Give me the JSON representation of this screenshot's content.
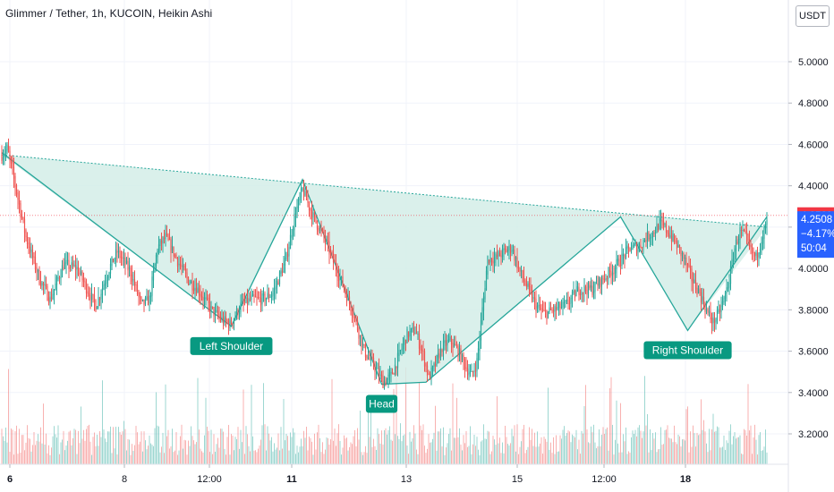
{
  "header": {
    "title": "Glimmer / Tether, 1h, KUCOIN, Heikin Ashi",
    "currency_button": "USDT"
  },
  "colors": {
    "up": "#26a69a",
    "down": "#ef5350",
    "pattern_fill": "#d3ede8",
    "pattern_line": "#26a69a",
    "badge": "#089981",
    "price_up_tag": "#2962ff",
    "price_down_tag": "#f23645",
    "grid": "#f0f3fa"
  },
  "chart_data": {
    "type": "candlestick",
    "title": "Glimmer / Tether, 1h, KUCOIN, Heikin Ashi",
    "y_axis": {
      "ticks": [
        "5.0000",
        "4.8000",
        "4.6000",
        "4.4000",
        "4.2000",
        "4.0000",
        "3.8000",
        "3.6000",
        "3.4000",
        "3.2000"
      ],
      "ylim": [
        3.04,
        5.21
      ]
    },
    "x_axis": {
      "ticks": [
        {
          "label": "6",
          "bold": true
        },
        {
          "label": "8",
          "bold": false
        },
        {
          "label": "12:00",
          "bold": false
        },
        {
          "label": "11",
          "bold": true
        },
        {
          "label": "13",
          "bold": false
        },
        {
          "label": "15",
          "bold": false
        },
        {
          "label": "12:00",
          "bold": false
        },
        {
          "label": "18",
          "bold": true
        }
      ]
    },
    "price_path": [
      [
        0,
        4.55
      ],
      [
        4,
        4.58
      ],
      [
        10,
        4.4
      ],
      [
        18,
        4.15
      ],
      [
        28,
        3.95
      ],
      [
        36,
        3.85
      ],
      [
        46,
        4.02
      ],
      [
        56,
        4.0
      ],
      [
        62,
        3.92
      ],
      [
        70,
        3.82
      ],
      [
        80,
        4.0
      ],
      [
        86,
        4.08
      ],
      [
        96,
        3.98
      ],
      [
        104,
        3.82
      ],
      [
        110,
        3.85
      ],
      [
        116,
        4.1
      ],
      [
        122,
        4.15
      ],
      [
        130,
        4.05
      ],
      [
        138,
        3.95
      ],
      [
        146,
        3.9
      ],
      [
        156,
        3.8
      ],
      [
        164,
        3.75
      ],
      [
        170,
        3.73
      ],
      [
        178,
        3.82
      ],
      [
        186,
        3.85
      ],
      [
        194,
        3.85
      ],
      [
        202,
        3.88
      ],
      [
        212,
        4.05
      ],
      [
        218,
        4.25
      ],
      [
        224,
        4.38
      ],
      [
        232,
        4.25
      ],
      [
        240,
        4.15
      ],
      [
        246,
        4.05
      ],
      [
        254,
        3.92
      ],
      [
        262,
        3.78
      ],
      [
        270,
        3.6
      ],
      [
        278,
        3.52
      ],
      [
        284,
        3.45
      ],
      [
        290,
        3.48
      ],
      [
        296,
        3.58
      ],
      [
        302,
        3.68
      ],
      [
        308,
        3.7
      ],
      [
        314,
        3.58
      ],
      [
        318,
        3.47
      ],
      [
        322,
        3.52
      ],
      [
        328,
        3.62
      ],
      [
        334,
        3.65
      ],
      [
        340,
        3.6
      ],
      [
        346,
        3.52
      ],
      [
        350,
        3.48
      ],
      [
        354,
        3.55
      ],
      [
        358,
        3.8
      ],
      [
        362,
        4.05
      ],
      [
        368,
        4.05
      ],
      [
        374,
        4.08
      ],
      [
        380,
        4.1
      ],
      [
        386,
        3.98
      ],
      [
        392,
        3.9
      ],
      [
        398,
        3.82
      ],
      [
        404,
        3.78
      ],
      [
        412,
        3.8
      ],
      [
        420,
        3.82
      ],
      [
        430,
        3.9
      ],
      [
        440,
        3.9
      ],
      [
        448,
        3.95
      ],
      [
        456,
        4.0
      ],
      [
        462,
        4.05
      ],
      [
        468,
        4.1
      ],
      [
        474,
        4.1
      ],
      [
        480,
        4.15
      ],
      [
        486,
        4.18
      ],
      [
        490,
        4.22
      ],
      [
        496,
        4.18
      ],
      [
        502,
        4.12
      ],
      [
        508,
        4.05
      ],
      [
        514,
        3.95
      ],
      [
        520,
        3.88
      ],
      [
        526,
        3.78
      ],
      [
        530,
        3.74
      ],
      [
        534,
        3.78
      ],
      [
        538,
        3.85
      ],
      [
        542,
        3.95
      ],
      [
        546,
        4.1
      ],
      [
        550,
        4.18
      ],
      [
        554,
        4.15
      ],
      [
        558,
        4.08
      ],
      [
        562,
        4.05
      ],
      [
        566,
        4.15
      ],
      [
        570,
        4.22
      ]
    ],
    "pattern": {
      "neckline": [
        [
          0,
          4.55
        ],
        [
          570,
          4.2
        ]
      ],
      "zigzag": [
        [
          0,
          4.56
        ],
        [
          171,
          3.72
        ],
        [
          224,
          4.43
        ],
        [
          283,
          3.44
        ],
        [
          316,
          3.45
        ],
        [
          461,
          4.25
        ],
        [
          511,
          3.7
        ],
        [
          570,
          4.25
        ]
      ]
    },
    "annotations": [
      {
        "label": "Left Shoulder",
        "x": 171,
        "price": 3.72
      },
      {
        "label": "Head",
        "x": 283,
        "price": 3.44
      },
      {
        "label": "Right Shoulder",
        "x": 511,
        "price": 3.7
      }
    ],
    "price_tags": [
      {
        "value": "4.2569",
        "color": "#f23645"
      },
      {
        "value": "4.2508",
        "change": "−4.17%",
        "countdown": "50:04",
        "color": "#2962ff"
      }
    ],
    "last_price": 4.2569,
    "current_price": 4.2508
  }
}
